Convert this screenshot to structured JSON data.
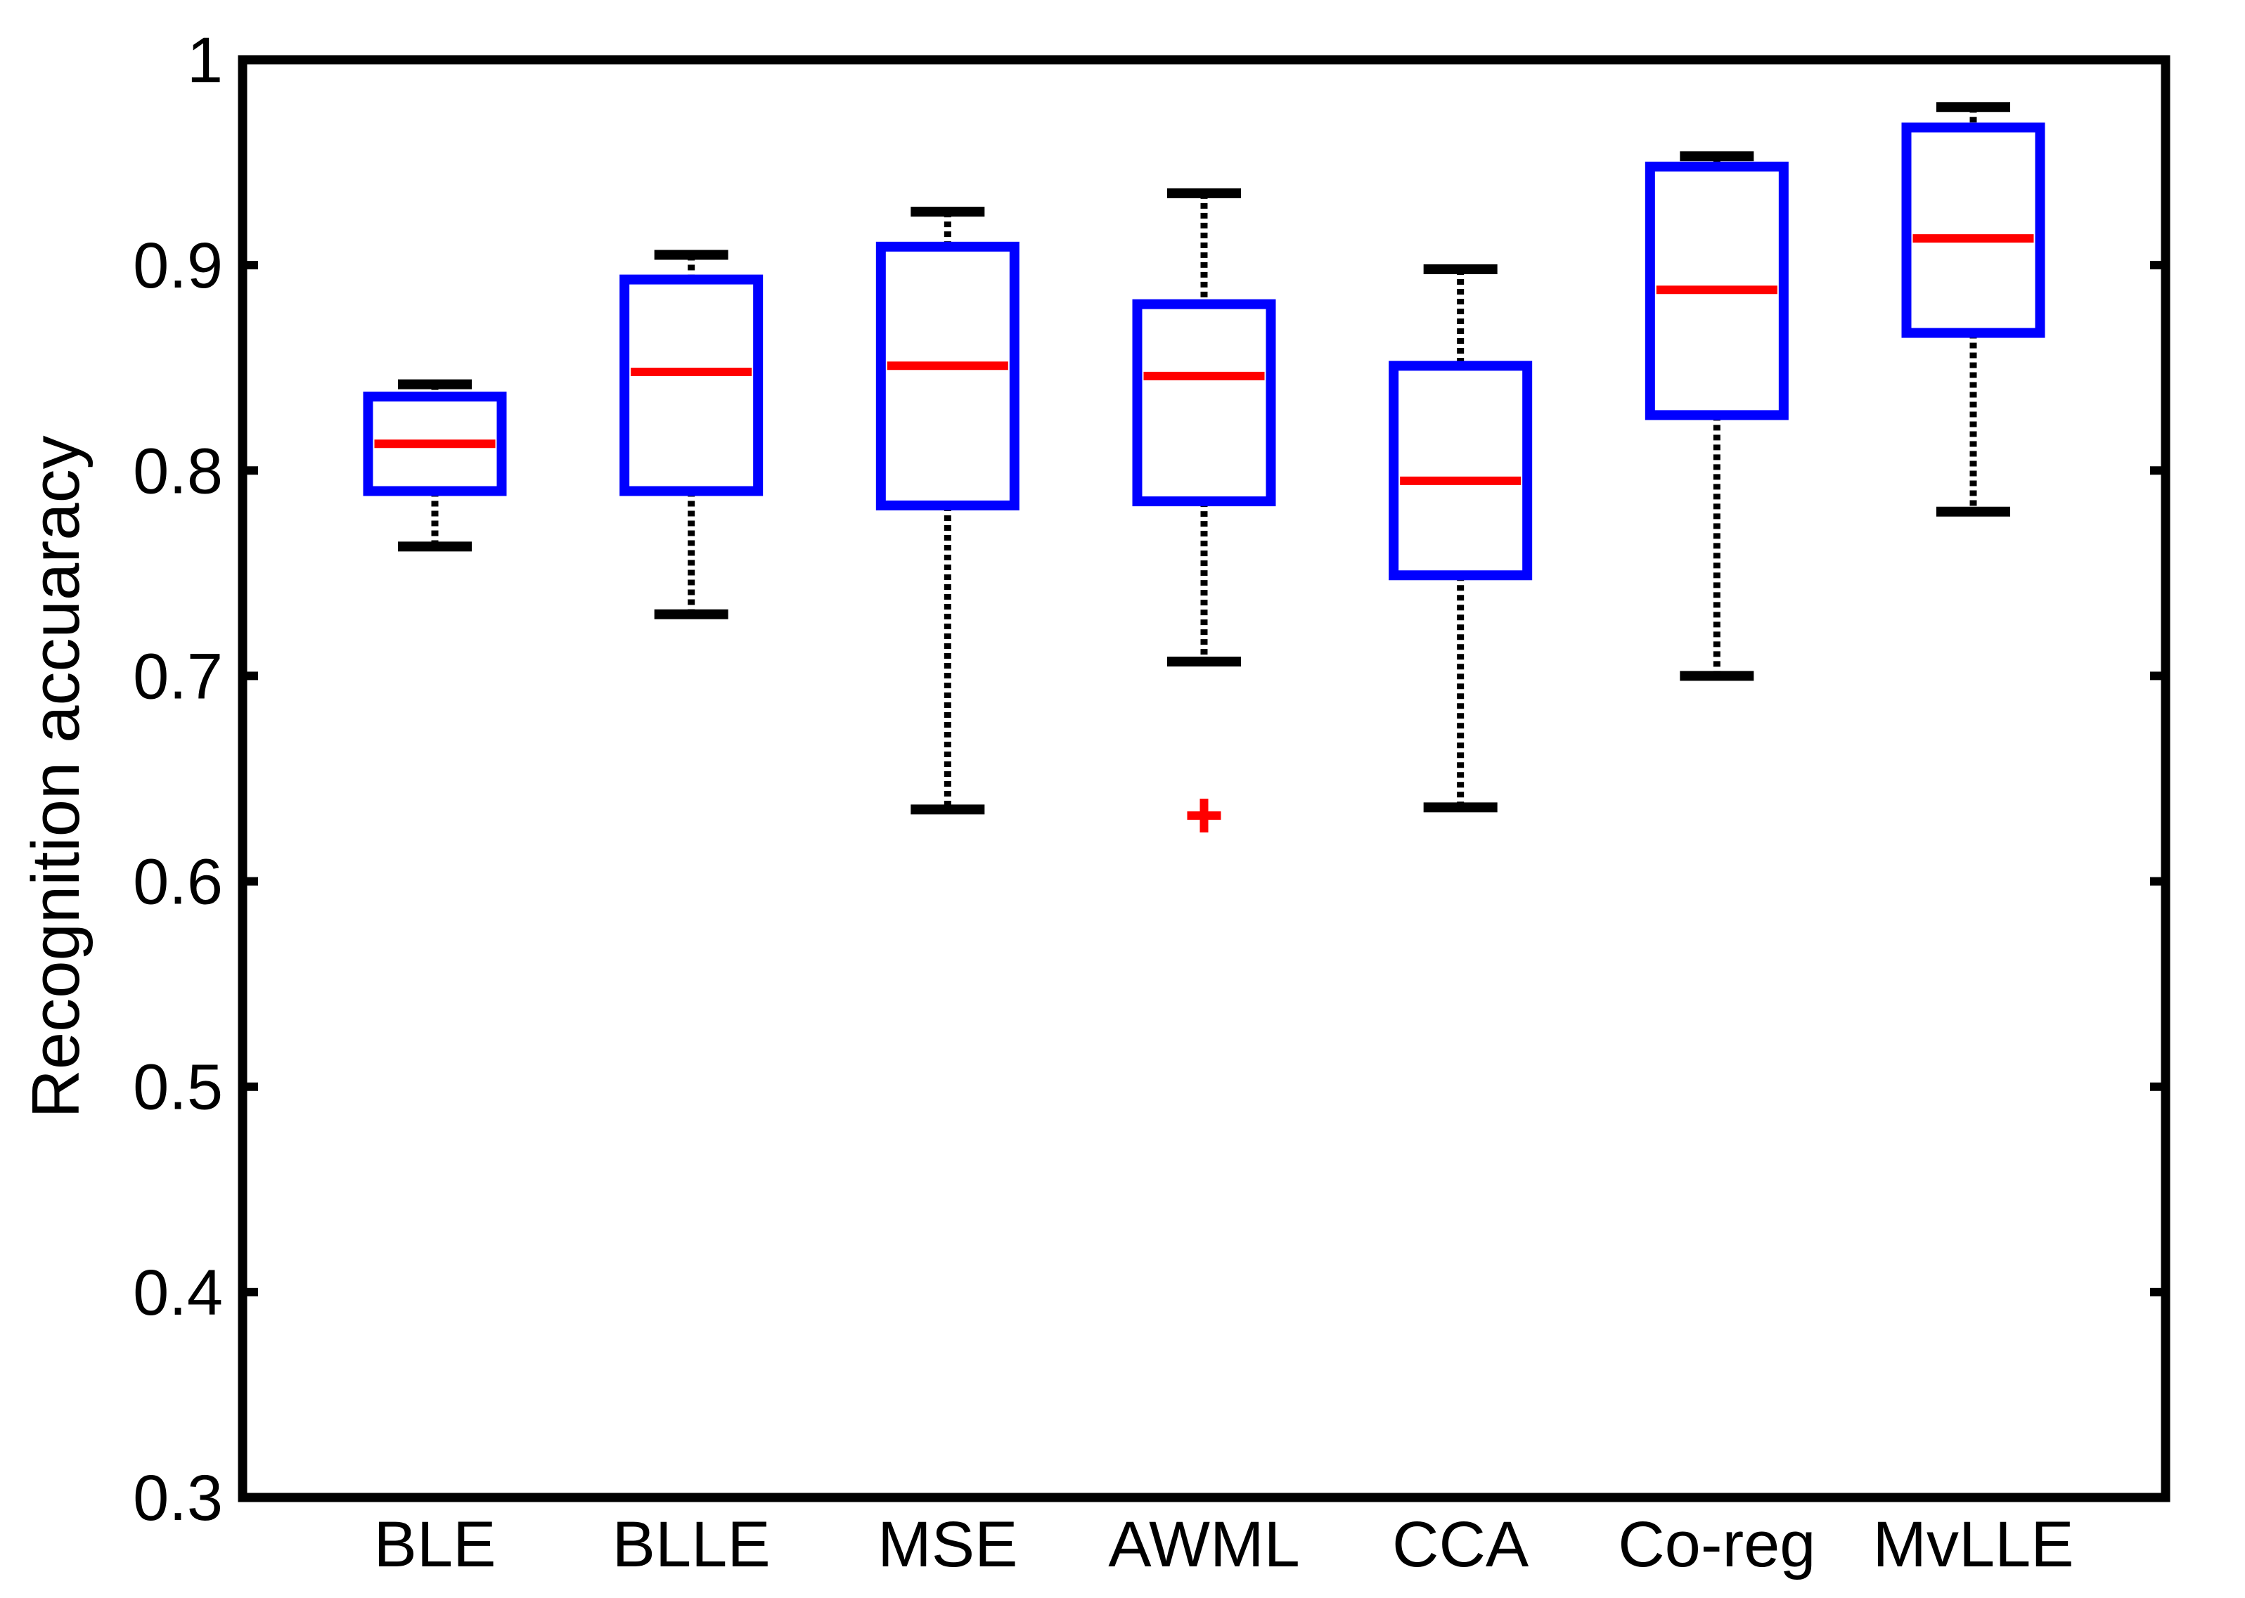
{
  "chart_data": {
    "type": "box",
    "title": "",
    "xlabel": "",
    "ylabel": "Recognition accuaracy",
    "ylim": [
      0.3,
      1.0
    ],
    "yticks": [
      0.3,
      0.4,
      0.5,
      0.6,
      0.7,
      0.8,
      0.9,
      1.0
    ],
    "ytick_labels": [
      "0.3",
      "0.4",
      "0.5",
      "0.6",
      "0.7",
      "0.8",
      "0.9",
      "1"
    ],
    "categories": [
      "BLE",
      "BLLE",
      "MSE",
      "AWML",
      "CCA",
      "Co-reg",
      "MvLLE"
    ],
    "boxes": [
      {
        "min": 0.763,
        "q1": 0.79,
        "median": 0.813,
        "q3": 0.836,
        "max": 0.842,
        "outliers": []
      },
      {
        "min": 0.73,
        "q1": 0.79,
        "median": 0.848,
        "q3": 0.893,
        "max": 0.905,
        "outliers": []
      },
      {
        "min": 0.635,
        "q1": 0.783,
        "median": 0.851,
        "q3": 0.909,
        "max": 0.926,
        "outliers": []
      },
      {
        "min": 0.707,
        "q1": 0.785,
        "median": 0.846,
        "q3": 0.881,
        "max": 0.935,
        "outliers": [
          0.632
        ]
      },
      {
        "min": 0.636,
        "q1": 0.749,
        "median": 0.795,
        "q3": 0.851,
        "max": 0.898,
        "outliers": []
      },
      {
        "min": 0.7,
        "q1": 0.827,
        "median": 0.888,
        "q3": 0.948,
        "max": 0.953,
        "outliers": []
      },
      {
        "min": 0.78,
        "q1": 0.867,
        "median": 0.913,
        "q3": 0.967,
        "max": 0.977,
        "outliers": []
      }
    ],
    "grid": false,
    "legend": "none",
    "colors": {
      "box": "#0000ff",
      "median": "#ff0000",
      "whisker": "#000000",
      "outlier": "#ff0000",
      "axes": "#000000"
    }
  }
}
